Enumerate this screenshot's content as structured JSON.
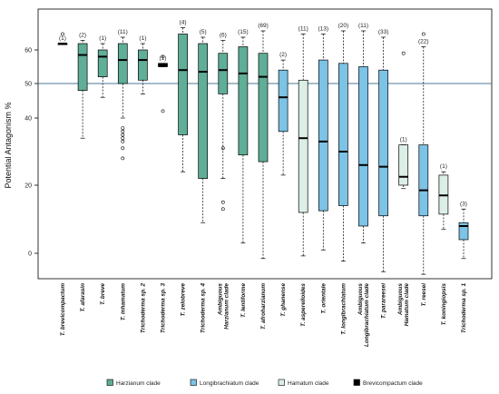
{
  "chart_data": {
    "type": "box",
    "ylabel": "Potential Antagonism %",
    "yticks": [
      0,
      20,
      40,
      50,
      60
    ],
    "ylim": [
      -9,
      70
    ],
    "reference_line": 50,
    "groups": [
      {
        "name": "Harzianum clade",
        "color": "#5fae97"
      },
      {
        "name": "Longibrachiatum clade",
        "color": "#7cc3e6"
      },
      {
        "name": "Hamatum clade",
        "color": "#dcefe7"
      },
      {
        "name": "Brevicompactum clade",
        "color": "#000000"
      }
    ],
    "categories": [
      {
        "label": "T. brevicompactum",
        "group": 3,
        "count": "(1)",
        "q1": 62,
        "median": 62,
        "q3": 62,
        "lo": 62,
        "hi": 62,
        "outliers": [
          65
        ]
      },
      {
        "label": "T. afarasin",
        "group": 0,
        "count": "(2)",
        "q1": 48,
        "median": 58.5,
        "q3": 62,
        "lo": 34,
        "hi": 63,
        "outliers": []
      },
      {
        "label": "T. breve",
        "group": 0,
        "count": "(1)",
        "q1": 52,
        "median": 58,
        "q3": 60,
        "lo": 46,
        "hi": 62,
        "outliers": []
      },
      {
        "label": "T. inhamatum",
        "group": 0,
        "count": "(11)",
        "q1": 50,
        "median": 57,
        "q3": 62,
        "lo": 40,
        "hi": 64,
        "outliers": [
          37,
          36,
          35,
          34,
          33,
          31,
          28
        ]
      },
      {
        "label": "Trichoderma sp. 2",
        "group": 0,
        "count": "(1)",
        "q1": 51,
        "median": 57,
        "q3": 60,
        "lo": 47,
        "hi": 62,
        "outliers": []
      },
      {
        "label": "Trichoderma sp. 3",
        "group": 3,
        "count": "(1)",
        "q1": 55,
        "median": 55.5,
        "q3": 56,
        "lo": 55,
        "hi": 56,
        "outliers": [
          58,
          42
        ]
      },
      {
        "label": "T. zelobreve",
        "group": 0,
        "count": "(4)",
        "q1": 35,
        "median": 54,
        "q3": 65,
        "lo": 24,
        "hi": 67,
        "outliers": []
      },
      {
        "label": "Trichoderma sp. 4",
        "group": 0,
        "count": "(5)",
        "q1": 22,
        "median": 53.5,
        "q3": 62,
        "lo": 9,
        "hi": 64,
        "outliers": []
      },
      {
        "label": "Ambiguous Harzianum clade",
        "group": 0,
        "count": "(6)",
        "q1": 47,
        "median": 54,
        "q3": 59,
        "lo": 22,
        "hi": 63,
        "outliers": [
          31,
          15,
          13
        ]
      },
      {
        "label": "T. lentiforme",
        "group": 0,
        "count": "(15)",
        "q1": 29,
        "median": 53,
        "q3": 61,
        "lo": 3,
        "hi": 64,
        "outliers": []
      },
      {
        "label": "T. afroharzianum",
        "group": 0,
        "count": "(69)",
        "q1": 27,
        "median": 52,
        "q3": 59,
        "lo": -2,
        "hi": 66,
        "outliers": []
      },
      {
        "label": "T. ghanense",
        "group": 1,
        "count": "(2)",
        "q1": 36,
        "median": 46,
        "q3": 54,
        "lo": 23,
        "hi": 57,
        "outliers": []
      },
      {
        "label": "T. asperelloides",
        "group": 2,
        "count": "(11)",
        "q1": 12,
        "median": 34,
        "q3": 51,
        "lo": -1,
        "hi": 65,
        "outliers": []
      },
      {
        "label": "T. orientale",
        "group": 1,
        "count": "(13)",
        "q1": 12.5,
        "median": 33,
        "q3": 57,
        "lo": 1,
        "hi": 65,
        "outliers": []
      },
      {
        "label": "T. longibrachiatum",
        "group": 1,
        "count": "(20)",
        "q1": 14,
        "median": 30,
        "q3": 56,
        "lo": -3,
        "hi": 66,
        "outliers": []
      },
      {
        "label": "Ambiguous Longibrachiatum clade",
        "group": 1,
        "count": "(11)",
        "q1": 8,
        "median": 26,
        "q3": 55,
        "lo": 3,
        "hi": 66,
        "outliers": []
      },
      {
        "label": "T. parareesei",
        "group": 1,
        "count": "(33)",
        "q1": 11,
        "median": 25.5,
        "q3": 54,
        "lo": -7,
        "hi": 64,
        "outliers": []
      },
      {
        "label": "Ambiguous Hamatum clade",
        "group": 2,
        "count": "(1)",
        "q1": 20,
        "median": 22.5,
        "q3": 32,
        "lo": 19,
        "hi": 32,
        "outliers": [
          59
        ]
      },
      {
        "label": "T. reesei",
        "group": 1,
        "count": "(22)",
        "q1": 11,
        "median": 18.5,
        "q3": 32,
        "lo": -8,
        "hi": 61,
        "outliers": [
          65
        ]
      },
      {
        "label": "T. koningiopsis",
        "group": 2,
        "count": "(1)",
        "q1": 11.5,
        "median": 17,
        "q3": 23,
        "lo": 7,
        "hi": 24,
        "outliers": []
      },
      {
        "label": "Trichoderma sp. 1",
        "group": 1,
        "count": "(3)",
        "q1": 4,
        "median": 8,
        "q3": 9,
        "lo": -2,
        "hi": 13,
        "outliers": []
      }
    ]
  }
}
